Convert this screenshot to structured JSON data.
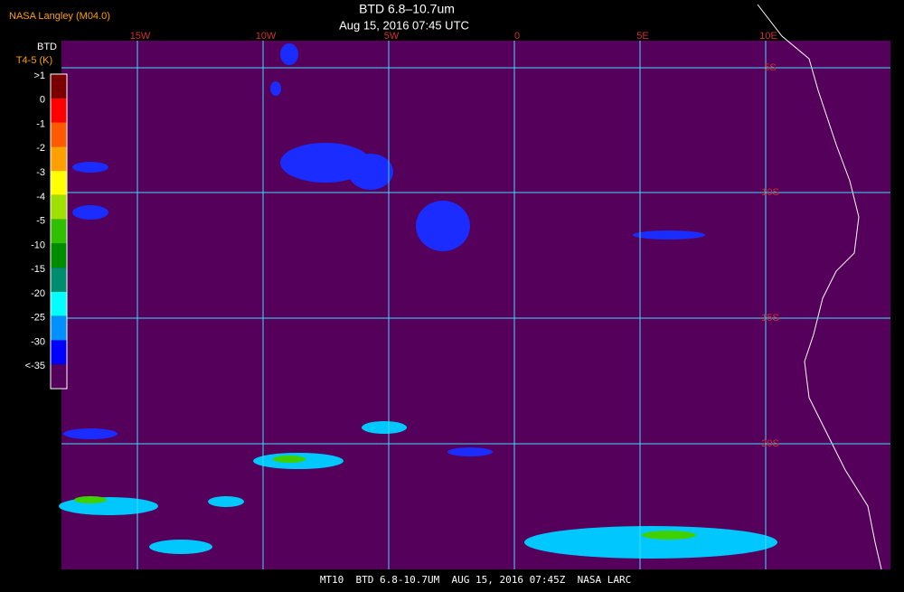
{
  "header": {
    "credit": "NASA Langley (M04.0)",
    "title": "BTD 6.8–10.7um",
    "subtitle": "Aug 15, 2016 07:45 UTC"
  },
  "legend": {
    "title": "BTD",
    "subtitle": "T4-5 (K)",
    "labels": [
      ">1",
      "0",
      "-1",
      "-2",
      "-3",
      "-4",
      "-5",
      "-10",
      "-15",
      "-20",
      "-25",
      "-30",
      "<-35"
    ],
    "colors": [
      "#7a0000",
      "#ff0000",
      "#ff5a00",
      "#ffa000",
      "#ffff00",
      "#a0e000",
      "#30c000",
      "#008c00",
      "#008c6e",
      "#00ffff",
      "#0090ff",
      "#0000ff",
      "#55005a"
    ]
  },
  "map": {
    "lon_labels": [
      "15W",
      "10W",
      "5W",
      "0",
      "5E",
      "10E"
    ],
    "lat_labels": [
      "5S",
      "10S",
      "15S",
      "20S"
    ]
  },
  "footer": "MT10  BTD 6.8-10.7UM  AUG 15, 2016 07:45Z  NASA LARC"
}
